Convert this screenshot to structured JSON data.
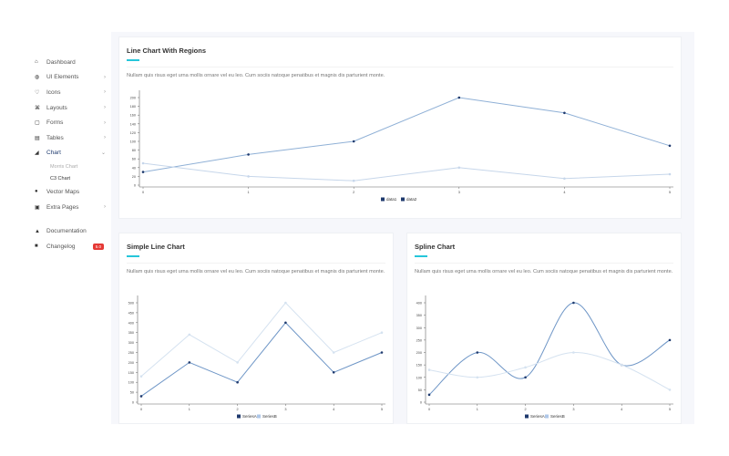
{
  "sidebar": {
    "items": [
      {
        "label": "Dashboard",
        "icon": "home-icon",
        "glyph": "⌂"
      },
      {
        "label": "UI Elements",
        "icon": "globe-icon",
        "glyph": "◍",
        "chevron": true
      },
      {
        "label": "Icons",
        "icon": "heart-icon",
        "glyph": "♡",
        "chevron": true
      },
      {
        "label": "Layouts",
        "icon": "layout-icon",
        "glyph": "⌘",
        "chevron": true
      },
      {
        "label": "Forms",
        "icon": "calendar-icon",
        "glyph": "▢",
        "chevron": true
      },
      {
        "label": "Tables",
        "icon": "table-icon",
        "glyph": "▤",
        "chevron": true
      },
      {
        "label": "Chart",
        "icon": "chart-icon",
        "glyph": "◢",
        "chevron": true,
        "active": true
      },
      {
        "label": "Morris Chart"
      },
      {
        "label": "C3 Chart"
      },
      {
        "label": "Vector Maps",
        "icon": "map-pin-icon",
        "glyph": "●"
      },
      {
        "label": "Extra Pages",
        "icon": "pages-icon",
        "glyph": "▣",
        "chevron": true
      },
      {
        "label": "Documentation",
        "icon": "doc-icon",
        "glyph": "▲"
      },
      {
        "label": "Changelog",
        "icon": "changelog-icon",
        "glyph": "■",
        "badge": "5.0"
      }
    ]
  },
  "colors": {
    "accent": "#26c6da",
    "series_dark": "#1f3a6e",
    "series_light": "#aec7e8",
    "badge": "#e53935"
  },
  "cards": [
    {
      "title": "Line Chart With Regions",
      "desc": "Nullam quis risus eget urna mollis ornare vel eu leo. Cum sociis natoque penatibus et magnis dis parturient monte."
    },
    {
      "title": "Simple Line Chart",
      "desc": "Nullam quis risus eget urna mollis ornare vel eu leo. Cum sociis natoque penatibus et magnis dis parturient monte."
    },
    {
      "title": "Spline Chart",
      "desc": "Nullam quis risus eget urna mollis ornare vel eu leo. Cum sociis natoque penatibus et magnis dis parturient monte."
    }
  ],
  "chart_data": [
    {
      "type": "line",
      "x": [
        0,
        1,
        2,
        3,
        4,
        5
      ],
      "ylim": [
        0,
        200
      ],
      "yticks": [
        0,
        20,
        40,
        60,
        80,
        100,
        120,
        140,
        160,
        180,
        200
      ],
      "legend": "bottom",
      "series": [
        {
          "name": "data1",
          "values": [
            30,
            70,
            100,
            200,
            165,
            90
          ],
          "color": "#8fb0d6"
        },
        {
          "name": "data2",
          "values": [
            50,
            20,
            10,
            40,
            15,
            25
          ],
          "color": "#c6d6ea"
        }
      ]
    },
    {
      "type": "line",
      "x": [
        0,
        1,
        2,
        3,
        4,
        5
      ],
      "ylim": [
        0,
        500
      ],
      "yticks": [
        0,
        50,
        100,
        150,
        200,
        250,
        300,
        350,
        400,
        450,
        500
      ],
      "legend": "bottom",
      "series": [
        {
          "name": "SeriesA",
          "values": [
            30,
            200,
            100,
            400,
            150,
            250
          ],
          "color": "#6d95c6"
        },
        {
          "name": "SeriesB",
          "values": [
            130,
            340,
            200,
            500,
            250,
            350
          ],
          "color": "#d5e2f0"
        }
      ]
    },
    {
      "type": "line",
      "spline": true,
      "x": [
        0,
        1,
        2,
        3,
        4,
        5
      ],
      "ylim": [
        0,
        400
      ],
      "yticks": [
        0,
        50,
        100,
        150,
        200,
        250,
        300,
        350,
        400
      ],
      "legend": "bottom",
      "series": [
        {
          "name": "SeriesA",
          "values": [
            30,
            200,
            100,
            400,
            150,
            250
          ],
          "color": "#6d95c6"
        },
        {
          "name": "SeriesB",
          "values": [
            130,
            100,
            140,
            200,
            150,
            50
          ],
          "color": "#d5e2f0"
        }
      ]
    }
  ]
}
